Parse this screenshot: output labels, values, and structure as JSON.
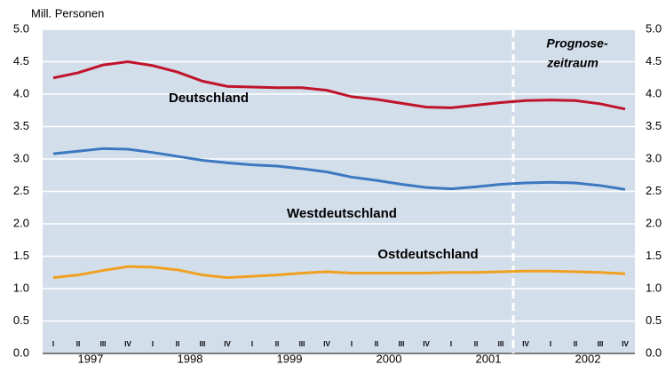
{
  "chart_data": {
    "type": "line",
    "y_label": "Mill. Personen",
    "categories": [
      "I",
      "II",
      "III",
      "IV",
      "I",
      "II",
      "III",
      "IV",
      "I",
      "II",
      "III",
      "IV",
      "I",
      "II",
      "III",
      "IV",
      "I",
      "II",
      "III",
      "IV",
      "I",
      "II",
      "III",
      "IV"
    ],
    "years": [
      "1997",
      "1998",
      "1999",
      "2000",
      "2001",
      "2002"
    ],
    "series": [
      {
        "name": "Deutschland",
        "color": "#c0142b",
        "values": [
          4.25,
          4.33,
          4.45,
          4.5,
          4.44,
          4.34,
          4.2,
          4.12,
          4.11,
          4.1,
          4.1,
          4.06,
          3.96,
          3.92,
          3.86,
          3.8,
          3.79,
          3.83,
          3.87,
          3.9,
          3.91,
          3.9,
          3.85,
          3.77
        ]
      },
      {
        "name": "Westdeutschland",
        "color": "#3c78c0",
        "values": [
          3.08,
          3.12,
          3.16,
          3.15,
          3.1,
          3.04,
          2.98,
          2.94,
          2.91,
          2.89,
          2.85,
          2.8,
          2.72,
          2.67,
          2.61,
          2.56,
          2.54,
          2.57,
          2.61,
          2.63,
          2.64,
          2.63,
          2.59,
          2.53
        ]
      },
      {
        "name": "Ostdeutschland",
        "color": "#f0a020",
        "values": [
          1.17,
          1.21,
          1.28,
          1.34,
          1.33,
          1.29,
          1.21,
          1.17,
          1.19,
          1.21,
          1.24,
          1.26,
          1.24,
          1.24,
          1.24,
          1.24,
          1.25,
          1.25,
          1.26,
          1.27,
          1.27,
          1.26,
          1.25,
          1.23
        ]
      }
    ],
    "annotations": [
      "Prognose-",
      "zeitraum"
    ],
    "ylim": [
      0,
      5
    ],
    "yticks": [
      {
        "value": 0,
        "label": "0.0"
      },
      0.5,
      {
        "value": 1,
        "label": "1.0"
      },
      1.5,
      {
        "value": 2,
        "label": "2.0"
      },
      2.5,
      {
        "value": 3,
        "label": "3.0"
      },
      3.5,
      {
        "value": 4,
        "label": "4.0"
      },
      4.5,
      {
        "value": 5,
        "label": "5.0"
      }
    ],
    "y2lim": [
      0,
      5
    ],
    "y2ticks": [
      {
        "value": 0,
        "label": "0.0"
      },
      0.5,
      {
        "value": 1,
        "label": "1.0"
      },
      1.5,
      {
        "value": 2,
        "label": "2.0"
      },
      2.5,
      {
        "value": 3,
        "label": "3.0"
      },
      3.5,
      {
        "value": 4,
        "label": "4.0"
      },
      4.5,
      {
        "value": 5,
        "label": "5.0"
      }
    ],
    "grid": true
  }
}
